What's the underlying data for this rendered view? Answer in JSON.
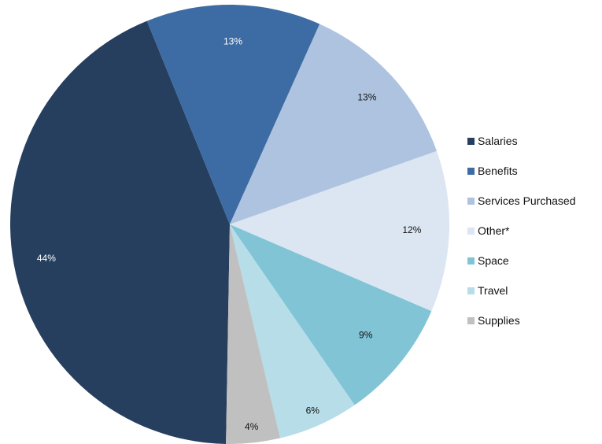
{
  "chart_data": {
    "type": "pie",
    "title": "",
    "categories": [
      "Salaries",
      "Benefits",
      "Services Purchased",
      "Other*",
      "Space",
      "Travel",
      "Supplies"
    ],
    "values": [
      44,
      13,
      13,
      12,
      9,
      6,
      4
    ],
    "labels": [
      "44%",
      "13%",
      "13%",
      "12%",
      "9%",
      "6%",
      "4%"
    ],
    "colors": [
      "#263f5f",
      "#3d6ca4",
      "#adc3df",
      "#dce6f2",
      "#80c4d6",
      "#b6dde8",
      "#c0c0c0"
    ],
    "label_colors": [
      "#ffffff",
      "#ffffff",
      "#111111",
      "#111111",
      "#111111",
      "#111111",
      "#111111"
    ],
    "start_angle_deg": 181,
    "direction": "clockwise",
    "legend_position": "right"
  }
}
